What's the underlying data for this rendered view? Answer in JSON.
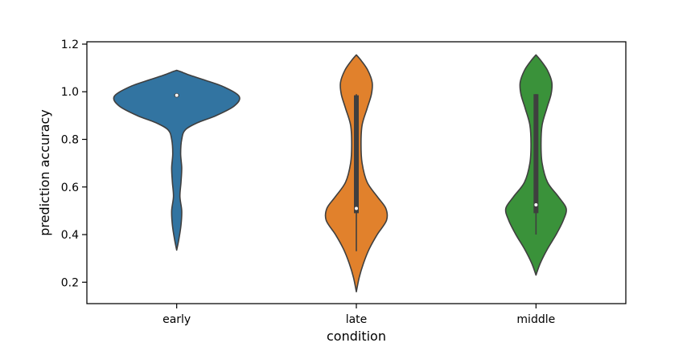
{
  "chart_data": {
    "type": "violin",
    "xlabel": "condition",
    "ylabel": "prediction accuracy",
    "ylim": [
      0.11,
      1.21
    ],
    "yticks": [
      "0.2",
      "0.4",
      "0.6",
      "0.8",
      "1.0",
      "1.2"
    ],
    "grid": false,
    "series": [
      {
        "name": "early",
        "color": "#3274a1",
        "range": [
          0.335,
          1.09
        ],
        "density": [
          [
            0.335,
            0.0
          ],
          [
            0.38,
            0.03
          ],
          [
            0.44,
            0.06
          ],
          [
            0.5,
            0.07
          ],
          [
            0.56,
            0.045
          ],
          [
            0.62,
            0.06
          ],
          [
            0.68,
            0.07
          ],
          [
            0.74,
            0.055
          ],
          [
            0.8,
            0.07
          ],
          [
            0.84,
            0.12
          ],
          [
            0.87,
            0.29
          ],
          [
            0.9,
            0.55
          ],
          [
            0.94,
            0.8
          ],
          [
            0.98,
            0.87
          ],
          [
            1.02,
            0.66
          ],
          [
            1.05,
            0.38
          ],
          [
            1.07,
            0.18
          ],
          [
            1.085,
            0.05
          ],
          [
            1.09,
            0.0
          ]
        ],
        "median": 0.985,
        "q1": 0.98,
        "q3": 0.99,
        "whisker_low": 0.98,
        "whisker_high": 0.99
      },
      {
        "name": "late",
        "color": "#e1812c",
        "range": [
          0.16,
          1.155
        ],
        "density": [
          [
            0.16,
            0.0
          ],
          [
            0.22,
            0.04
          ],
          [
            0.28,
            0.1
          ],
          [
            0.34,
            0.18
          ],
          [
            0.4,
            0.29
          ],
          [
            0.46,
            0.42
          ],
          [
            0.51,
            0.41
          ],
          [
            0.56,
            0.29
          ],
          [
            0.62,
            0.15
          ],
          [
            0.7,
            0.08
          ],
          [
            0.78,
            0.065
          ],
          [
            0.86,
            0.08
          ],
          [
            0.93,
            0.15
          ],
          [
            0.99,
            0.21
          ],
          [
            1.04,
            0.22
          ],
          [
            1.09,
            0.16
          ],
          [
            1.13,
            0.07
          ],
          [
            1.155,
            0.0
          ]
        ],
        "median": 0.51,
        "q1": 0.49,
        "q3": 0.985,
        "whisker_low": 0.33,
        "whisker_high": 0.99
      },
      {
        "name": "middle",
        "color": "#3a923a",
        "range": [
          0.23,
          1.155
        ],
        "density": [
          [
            0.23,
            0.0
          ],
          [
            0.28,
            0.06
          ],
          [
            0.34,
            0.16
          ],
          [
            0.4,
            0.28
          ],
          [
            0.46,
            0.38
          ],
          [
            0.51,
            0.42
          ],
          [
            0.56,
            0.31
          ],
          [
            0.62,
            0.16
          ],
          [
            0.7,
            0.085
          ],
          [
            0.78,
            0.07
          ],
          [
            0.86,
            0.085
          ],
          [
            0.93,
            0.15
          ],
          [
            0.99,
            0.21
          ],
          [
            1.04,
            0.22
          ],
          [
            1.09,
            0.16
          ],
          [
            1.13,
            0.07
          ],
          [
            1.155,
            0.0
          ]
        ],
        "median": 0.525,
        "q1": 0.49,
        "q3": 0.99,
        "whisker_low": 0.4,
        "whisker_high": 0.99
      }
    ]
  }
}
